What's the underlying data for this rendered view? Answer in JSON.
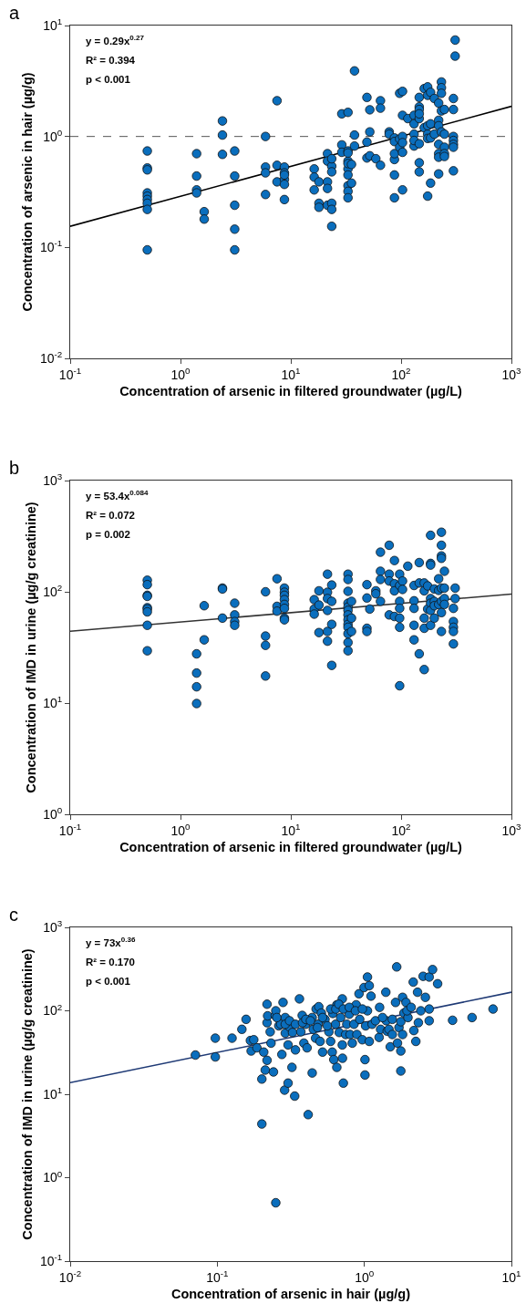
{
  "chart_data": [
    {
      "type": "scatter",
      "title": "a",
      "xlabel": "Concentration of arsenic in filtered groundwater (µg/L)",
      "ylabel": "Concentration of arsenic in hair (µg/g)",
      "log": "xy",
      "grid": false,
      "marker": "circle",
      "xlim": [
        0.1,
        1000
      ],
      "ylim": [
        0.01,
        10
      ],
      "xticks": [
        {
          "value": 0.1,
          "label": "10$^{-1}$"
        },
        {
          "value": 1,
          "label": "10$^{0}$"
        },
        {
          "value": 10,
          "label": "10$^{1}$"
        },
        {
          "value": 100,
          "label": "10$^{2}$"
        },
        {
          "value": 1000,
          "label": "10$^{3}$"
        }
      ],
      "yticks": [
        {
          "value": 0.01,
          "label": "10$^{-2}$"
        },
        {
          "value": 0.1,
          "label": "10$^{-1}$"
        },
        {
          "value": 1,
          "label": "10$^{0}$"
        },
        {
          "value": 10,
          "label": "10$^{1}$"
        }
      ],
      "annotations": [
        "y = 0.29x$^{0.27}$",
        "R² = 0.394",
        "p < 0.001"
      ],
      "ref_lines": [
        {
          "axis": "y",
          "value": 1,
          "label": null,
          "color": "#555555",
          "line_style": "dashed"
        }
      ],
      "series": [
        {
          "color": "#0a6ebd",
          "x": [
            0.5,
            0.5,
            0.5,
            0.5,
            0.5,
            0.5,
            0.5,
            0.5,
            0.5,
            1.4,
            1.4,
            1.4,
            1.4,
            1.64,
            1.64,
            2.4,
            2.4,
            2.4,
            3.1,
            3.1,
            3.1,
            3.1,
            3.1,
            5.9,
            5.9,
            5.9,
            5.9,
            7.5,
            7.5,
            7.5,
            8.75,
            8.75,
            8.75,
            8.75,
            8.75,
            8.75,
            16.3,
            16.3,
            16.3,
            18,
            18,
            18,
            21.5,
            21.5,
            21.5,
            21.5,
            21.5,
            23.5,
            23.5,
            23.5,
            23.5,
            23.5,
            23.5,
            29,
            29,
            29,
            33,
            33,
            33,
            33,
            33,
            33,
            33,
            33,
            33,
            33,
            35.5,
            35.5,
            37.8,
            37.8,
            37.8,
            49,
            49,
            49,
            52,
            52,
            52,
            59,
            65,
            65,
            65,
            78,
            78,
            87,
            87,
            87,
            87,
            87,
            87,
            97,
            97,
            97,
            103,
            103,
            103,
            103,
            103,
            103,
            115,
            131,
            131,
            131,
            131,
            131,
            146,
            146,
            146,
            146,
            146,
            146,
            146,
            146,
            162,
            162,
            174,
            174,
            174,
            174,
            174,
            174,
            185,
            185,
            185,
            185,
            200,
            200,
            219,
            219,
            219,
            219,
            219,
            219,
            219,
            232,
            232,
            232,
            232,
            232,
            247,
            247,
            247,
            247,
            247,
            298,
            298,
            298,
            298,
            298,
            298,
            298,
            309,
            309
          ],
          "values": [
            0.74,
            0.52,
            0.5,
            0.31,
            0.29,
            0.27,
            0.25,
            0.22,
            0.095,
            0.7,
            0.44,
            0.33,
            0.31,
            0.21,
            0.18,
            1.38,
            1.03,
            0.69,
            0.74,
            0.44,
            0.24,
            0.146,
            0.095,
            1.0,
            0.53,
            0.47,
            0.3,
            2.1,
            0.55,
            0.39,
            0.53,
            0.47,
            0.41,
            0.37,
            0.27,
            0.45,
            0.51,
            0.43,
            0.33,
            0.39,
            0.25,
            0.23,
            0.7,
            0.6,
            0.39,
            0.34,
            0.24,
            0.54,
            0.63,
            0.25,
            0.22,
            0.155,
            0.48,
            1.6,
            0.84,
            0.72,
            1.65,
            0.74,
            0.6,
            0.51,
            0.45,
            0.36,
            0.32,
            0.28,
            0.71,
            0.57,
            0.56,
            0.38,
            3.9,
            1.03,
            0.82,
            2.25,
            0.89,
            0.64,
            1.74,
            1.1,
            0.67,
            0.63,
            2.1,
            1.8,
            0.55,
            1.1,
            1.05,
            0.97,
            0.62,
            0.45,
            0.28,
            0.7,
            0.9,
            2.45,
            0.8,
            0.95,
            2.55,
            1.55,
            1.0,
            0.72,
            0.33,
            0.88,
            1.45,
            1.55,
            1.3,
            1.05,
            0.82,
            0.92,
            2.25,
            1.85,
            1.75,
            1.45,
            0.58,
            0.48,
            0.86,
            1.6,
            2.7,
            1.2,
            2.8,
            2.35,
            1.05,
            0.29,
            1.25,
            0.96,
            2.5,
            1.3,
            0.38,
            0.97,
            2.2,
            1.05,
            2.0,
            1.4,
            0.85,
            0.7,
            0.65,
            0.46,
            1.25,
            3.1,
            2.75,
            2.45,
            1.7,
            1.1,
            1.75,
            1.05,
            0.8,
            0.7,
            0.66,
            2.2,
            1.75,
            1.0,
            0.92,
            0.85,
            0.8,
            0.49,
            7.4,
            5.3
          ]
        },
        {
          "type": "line",
          "color": "#000000",
          "line_style": "solid",
          "marker": "none",
          "x": [
            0.1,
            1000
          ],
          "values": [
            0.155,
            1.87
          ]
        }
      ]
    },
    {
      "type": "scatter",
      "title": "b",
      "xlabel": "Concentration of arsenic in filtered groundwater (µg/L)",
      "ylabel": "Concentration of IMD in urine (µg/g creatinine)",
      "log": "xy",
      "grid": false,
      "marker": "circle",
      "xlim": [
        0.1,
        1000
      ],
      "ylim": [
        1,
        1000
      ],
      "xticks": [
        {
          "value": 0.1,
          "label": "10$^{-1}$"
        },
        {
          "value": 1,
          "label": "10$^{0}$"
        },
        {
          "value": 10,
          "label": "10$^{1}$"
        },
        {
          "value": 100,
          "label": "10$^{2}$"
        },
        {
          "value": 1000,
          "label": "10$^{3}$"
        }
      ],
      "yticks": [
        {
          "value": 1,
          "label": "10$^{0}$"
        },
        {
          "value": 10,
          "label": "10$^{1}$"
        },
        {
          "value": 100,
          "label": "10$^{2}$"
        },
        {
          "value": 1000,
          "label": "10$^{3}$"
        }
      ],
      "annotations": [
        "y = 53.4x$^{0.084}$",
        "R² = 0.072",
        "p = 0.002"
      ],
      "series": [
        {
          "color": "#0a6ebd",
          "x": [
            0.5,
            0.5,
            0.5,
            0.5,
            0.5,
            0.5,
            0.5,
            0.5,
            0.5,
            1.4,
            1.4,
            1.4,
            1.4,
            1.64,
            1.64,
            2.4,
            2.4,
            2.4,
            3.1,
            3.1,
            3.1,
            3.1,
            5.9,
            5.9,
            5.9,
            5.9,
            7.5,
            7.5,
            7.5,
            8.75,
            8.75,
            8.75,
            8.75,
            8.75,
            8.75,
            8.75,
            8.75,
            16.3,
            16.3,
            16.3,
            18,
            18,
            18,
            21.5,
            21.5,
            21.5,
            21.5,
            21.5,
            21.5,
            23.5,
            23.5,
            23.5,
            23.5,
            33,
            33,
            33,
            33,
            33,
            33,
            33,
            33,
            33,
            33,
            33,
            33,
            33,
            35.5,
            35.5,
            35.5,
            49,
            49,
            49,
            49,
            52,
            59,
            59,
            65,
            65,
            65,
            65,
            78,
            78,
            78,
            78,
            87,
            87,
            87,
            87,
            97,
            97,
            97,
            97,
            97,
            97,
            97,
            103,
            103,
            115,
            131,
            131,
            131,
            131,
            131,
            146,
            146,
            146,
            162,
            162,
            162,
            162,
            162,
            174,
            174,
            185,
            185,
            185,
            185,
            185,
            185,
            185,
            200,
            200,
            200,
            200,
            219,
            219,
            219,
            232,
            232,
            232,
            232,
            232,
            232,
            232,
            232,
            247,
            247,
            247,
            247,
            298,
            298,
            298,
            298,
            298,
            309,
            309
          ],
          "values": [
            127,
            116,
            93,
            91,
            72,
            70,
            66,
            50,
            29.5,
            27.7,
            18.6,
            14,
            9.9,
            75,
            37,
            108,
            106,
            58,
            79,
            62,
            54,
            50,
            100,
            40,
            33,
            17.5,
            131,
            74,
            67,
            108,
            99,
            93,
            85,
            77,
            71,
            58,
            56,
            85,
            70,
            63,
            102,
            76,
            43,
            144,
            99,
            87,
            68,
            44,
            36,
            115,
            82,
            51,
            21.8,
            144,
            129,
            101,
            79,
            73,
            68,
            62,
            56,
            51,
            48,
            42,
            35,
            29.5,
            82,
            58,
            44,
            116,
            88,
            47,
            44,
            70,
            102,
            96,
            227,
            153,
            129,
            82,
            262,
            144,
            125,
            62,
            191,
            118,
            102,
            60,
            144,
            114,
            82,
            71,
            58,
            48,
            14.3,
            125,
            105,
            170,
            114,
            83,
            71,
            50,
            37,
            183,
            120,
            27.7,
            120,
            102,
            58,
            47,
            20,
            113,
            70,
            322,
            180,
            174,
            87,
            79,
            68,
            50,
            106,
            82,
            75,
            58,
            131,
            103,
            77,
            343,
            262,
            210,
            200,
            108,
            82,
            65,
            44,
            153,
            108,
            87,
            77,
            71,
            54,
            48,
            44,
            34,
            108,
            87
          ]
        },
        {
          "type": "line",
          "color": "#333333",
          "line_style": "solid",
          "marker": "none",
          "x": [
            0.1,
            1000
          ],
          "values": [
            44.2,
            95.4
          ]
        }
      ]
    },
    {
      "type": "scatter",
      "title": "c",
      "xlabel": "Concentration of arsenic in hair (µg/g)",
      "ylabel": "Concentration of IMD in urine (µg/g creatinine)",
      "log": "xy",
      "grid": false,
      "marker": "circle",
      "xlim": [
        0.01,
        10
      ],
      "ylim": [
        0.1,
        1000
      ],
      "xticks": [
        {
          "value": 0.01,
          "label": "10$^{-2}$"
        },
        {
          "value": 0.1,
          "label": "10$^{-1}$"
        },
        {
          "value": 1,
          "label": "10$^{0}$"
        },
        {
          "value": 10,
          "label": "10$^{1}$"
        }
      ],
      "yticks": [
        {
          "value": 0.1,
          "label": "10$^{-1}$"
        },
        {
          "value": 1,
          "label": "10$^{0}$"
        },
        {
          "value": 10,
          "label": "10$^{1}$"
        },
        {
          "value": 100,
          "label": "10$^{2}$"
        },
        {
          "value": 1000,
          "label": "10$^{3}$"
        }
      ],
      "annotations": [
        "y = 73x$^{0.36}$",
        "R² = 0.170",
        "p < 0.001"
      ],
      "series": [
        {
          "color": "#0a6ebd",
          "x": [
            0.071,
            0.097,
            0.097,
            0.126,
            0.147,
            0.157,
            0.168,
            0.17,
            0.177,
            0.186,
            0.201,
            0.201,
            0.207,
            0.212,
            0.218,
            0.218,
            0.218,
            0.22,
            0.229,
            0.232,
            0.241,
            0.248,
            0.25,
            0.25,
            0.262,
            0.27,
            0.275,
            0.28,
            0.287,
            0.29,
            0.29,
            0.303,
            0.303,
            0.31,
            0.322,
            0.325,
            0.336,
            0.34,
            0.362,
            0.37,
            0.378,
            0.388,
            0.4,
            0.408,
            0.415,
            0.442,
            0.442,
            0.45,
            0.466,
            0.47,
            0.485,
            0.49,
            0.5,
            0.51,
            0.52,
            0.54,
            0.574,
            0.59,
            0.605,
            0.61,
            0.62,
            0.637,
            0.65,
            0.65,
            0.675,
            0.69,
            0.708,
            0.708,
            0.71,
            0.72,
            0.746,
            0.76,
            0.79,
            0.8,
            0.828,
            0.85,
            0.88,
            0.89,
            0.92,
            0.93,
            0.968,
            0.995,
            1.01,
            1.01,
            1.02,
            1.05,
            1.05,
            1.08,
            1.08,
            1.11,
            1.13,
            1.26,
            1.27,
            1.29,
            1.4,
            1.41,
            1.43,
            1.5,
            1.55,
            1.63,
            1.66,
            1.68,
            1.72,
            1.77,
            1.77,
            1.77,
            1.82,
            1.86,
            1.92,
            1.98,
            2.15,
            2.17,
            2.24,
            2.3,
            2.33,
            2.42,
            2.51,
            2.6,
            2.76,
            2.76,
            2.76,
            2.91,
            3.15,
            3.98,
            5.4,
            7.5,
            0.254,
            0.29,
            0.31,
            0.34,
            0.38,
            0.4,
            0.43,
            0.48,
            0.52,
            0.56,
            0.59,
            0.64,
            0.67,
            0.72,
            0.79,
            0.87,
            0.97,
            1.19,
            1.33,
            1.47,
            1.55,
            1.82,
            1.95,
            2.08
          ],
          "values": [
            29.5,
            28,
            47,
            47,
            60,
            79,
            44,
            33,
            45,
            36,
            15.2,
            4.4,
            32,
            19.5,
            25.5,
            120,
            72,
            87,
            56,
            41,
            18.5,
            88,
            0.5,
            100,
            66,
            69,
            30,
            126,
            11.2,
            83,
            54,
            13.6,
            39,
            64,
            21,
            55,
            9.5,
            34,
            139,
            56,
            88,
            41,
            69,
            36,
            5.7,
            18,
            83,
            60,
            47,
            105,
            69,
            112,
            43,
            94,
            32,
            79,
            56,
            43,
            32,
            93,
            26,
            69,
            21,
            118,
            55,
            83,
            39,
            139,
            27,
            13.6,
            52,
            69,
            91,
            52,
            41,
            69,
            118,
            52,
            160,
            79,
            45,
            190,
            26,
            17,
            66,
            254,
            100,
            200,
            43,
            150,
            69,
            48,
            110,
            60,
            167,
            76,
            57,
            37,
            79,
            126,
            336,
            41,
            63,
            33,
            19,
            74,
            145,
            94,
            126,
            83,
            221,
            58,
            43,
            167,
            72,
            100,
            259,
            145,
            254,
            76,
            105,
            312,
            211,
            77,
            83,
            105,
            83,
            69,
            76,
            69,
            72,
            79,
            76,
            63,
            83,
            66,
            105,
            105,
            120,
            105,
            110,
            100,
            105,
            76,
            83,
            60,
            52,
            52,
            100,
            110
          ]
        },
        {
          "type": "line",
          "color": "#1f3a75",
          "line_style": "solid",
          "marker": "none",
          "x": [
            0.01,
            10
          ],
          "values": [
            13.8,
            167
          ]
        }
      ]
    }
  ]
}
